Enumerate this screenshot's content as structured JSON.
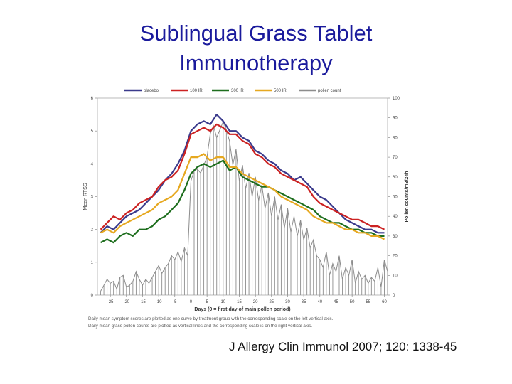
{
  "slide": {
    "title_line1": "Sublingual Grass Tablet",
    "title_line2": "Immunotherapy",
    "citation": "J Allergy Clin Immunol 2007; 120: 1338-45",
    "caption_line1": "Daily mean symptom scores are plotted as one curve by treatment group with the corresponding scale on the left vertical axis.",
    "caption_line2": "Daily mean grass pollen counts are plotted as vertical lines and the corresponding scale is on the right vertical axis."
  },
  "colors": {
    "placebo": "#3a3a8c",
    "ir100": "#cc2222",
    "ir300": "#1e6e1e",
    "ir500": "#e6a820",
    "pollen": "#8c8c8c",
    "title": "#1a1a9c"
  },
  "chart_data": {
    "type": "line",
    "xlabel": "Days (0 = first day of main pollen period)",
    "ylabel": "Mean RTSS",
    "y2label": "Pollen counts/m3/24h",
    "xlim": [
      -29,
      61
    ],
    "ylim": [
      0,
      6
    ],
    "y2lim": [
      0,
      100
    ],
    "xticks": [
      -25,
      -20,
      -15,
      -10,
      -5,
      0,
      5,
      10,
      15,
      20,
      25,
      30,
      35,
      40,
      45,
      50,
      55,
      60
    ],
    "yticks": [
      0,
      1,
      2,
      3,
      4,
      5,
      6
    ],
    "y2ticks": [
      0,
      10,
      20,
      30,
      40,
      50,
      60,
      70,
      80,
      90,
      100
    ],
    "legend_position": "top",
    "grid": false,
    "x": [
      -28,
      -26,
      -24,
      -22,
      -20,
      -18,
      -16,
      -14,
      -12,
      -10,
      -8,
      -6,
      -4,
      -2,
      0,
      2,
      4,
      6,
      8,
      10,
      12,
      14,
      16,
      18,
      20,
      22,
      24,
      26,
      28,
      30,
      32,
      34,
      36,
      38,
      40,
      42,
      44,
      46,
      48,
      50,
      52,
      54,
      56,
      58,
      60
    ],
    "series": [
      {
        "name": "placebo",
        "values": [
          1.9,
          2.1,
          2.0,
          2.2,
          2.4,
          2.5,
          2.6,
          2.8,
          3.0,
          3.2,
          3.5,
          3.7,
          4.0,
          4.4,
          5.0,
          5.2,
          5.3,
          5.2,
          5.5,
          5.3,
          5.0,
          5.0,
          4.8,
          4.7,
          4.4,
          4.3,
          4.1,
          4.0,
          3.8,
          3.7,
          3.5,
          3.6,
          3.4,
          3.2,
          3.0,
          2.9,
          2.7,
          2.5,
          2.3,
          2.2,
          2.1,
          2.0,
          2.0,
          1.9,
          1.9
        ]
      },
      {
        "name": "100 IR",
        "values": [
          2.0,
          2.2,
          2.4,
          2.3,
          2.5,
          2.6,
          2.8,
          2.9,
          3.0,
          3.3,
          3.5,
          3.6,
          3.8,
          4.3,
          4.9,
          5.0,
          5.1,
          5.0,
          5.2,
          5.1,
          4.9,
          4.9,
          4.7,
          4.6,
          4.3,
          4.2,
          4.0,
          3.9,
          3.7,
          3.6,
          3.5,
          3.4,
          3.3,
          3.0,
          2.8,
          2.7,
          2.6,
          2.5,
          2.4,
          2.3,
          2.3,
          2.2,
          2.1,
          2.1,
          2.0
        ]
      },
      {
        "name": "300 IR",
        "values": [
          1.6,
          1.7,
          1.6,
          1.8,
          1.9,
          1.8,
          2.0,
          2.0,
          2.1,
          2.3,
          2.4,
          2.6,
          2.8,
          3.2,
          3.7,
          3.9,
          4.0,
          3.9,
          4.0,
          4.1,
          3.8,
          3.9,
          3.6,
          3.5,
          3.4,
          3.3,
          3.3,
          3.2,
          3.1,
          3.0,
          2.9,
          2.8,
          2.7,
          2.6,
          2.4,
          2.3,
          2.2,
          2.2,
          2.1,
          2.0,
          2.0,
          1.9,
          1.9,
          1.8,
          1.8
        ]
      },
      {
        "name": "500 IR",
        "values": [
          1.9,
          2.0,
          1.9,
          2.1,
          2.2,
          2.3,
          2.4,
          2.5,
          2.6,
          2.8,
          2.9,
          3.0,
          3.2,
          3.7,
          4.2,
          4.2,
          4.3,
          4.1,
          4.2,
          4.2,
          3.9,
          3.9,
          3.7,
          3.6,
          3.5,
          3.4,
          3.3,
          3.2,
          3.0,
          2.9,
          2.8,
          2.7,
          2.6,
          2.4,
          2.3,
          2.2,
          2.2,
          2.1,
          2.0,
          2.0,
          1.9,
          1.9,
          1.8,
          1.8,
          1.7
        ]
      }
    ],
    "pollen_x": [
      -28,
      -27,
      -26,
      -25,
      -24,
      -23,
      -22,
      -21,
      -20,
      -19,
      -18,
      -17,
      -16,
      -15,
      -14,
      -13,
      -12,
      -11,
      -10,
      -9,
      -8,
      -7,
      -6,
      -5,
      -4,
      -3,
      -2,
      -1,
      0,
      1,
      2,
      3,
      4,
      5,
      6,
      7,
      8,
      9,
      10,
      11,
      12,
      13,
      14,
      15,
      16,
      17,
      18,
      19,
      20,
      21,
      22,
      23,
      24,
      25,
      26,
      27,
      28,
      29,
      30,
      31,
      32,
      33,
      34,
      35,
      36,
      37,
      38,
      39,
      40,
      41,
      42,
      43,
      44,
      45,
      46,
      47,
      48,
      49,
      50,
      51,
      52,
      53,
      54,
      55,
      56,
      57,
      58,
      59,
      60,
      61
    ],
    "pollen_counts": [
      2,
      5,
      8,
      6,
      7,
      3,
      9,
      10,
      4,
      5,
      7,
      12,
      8,
      5,
      8,
      6,
      9,
      12,
      15,
      11,
      14,
      16,
      20,
      18,
      22,
      17,
      24,
      20,
      58,
      63,
      64,
      62,
      66,
      70,
      82,
      86,
      80,
      84,
      88,
      84,
      78,
      66,
      74,
      58,
      66,
      54,
      62,
      50,
      60,
      48,
      56,
      44,
      52,
      40,
      50,
      38,
      46,
      34,
      44,
      32,
      40,
      30,
      38,
      28,
      34,
      24,
      28,
      20,
      18,
      14,
      22,
      10,
      16,
      12,
      20,
      8,
      14,
      10,
      18,
      6,
      12,
      8,
      10,
      6,
      9,
      7,
      14,
      4,
      18,
      12
    ]
  }
}
